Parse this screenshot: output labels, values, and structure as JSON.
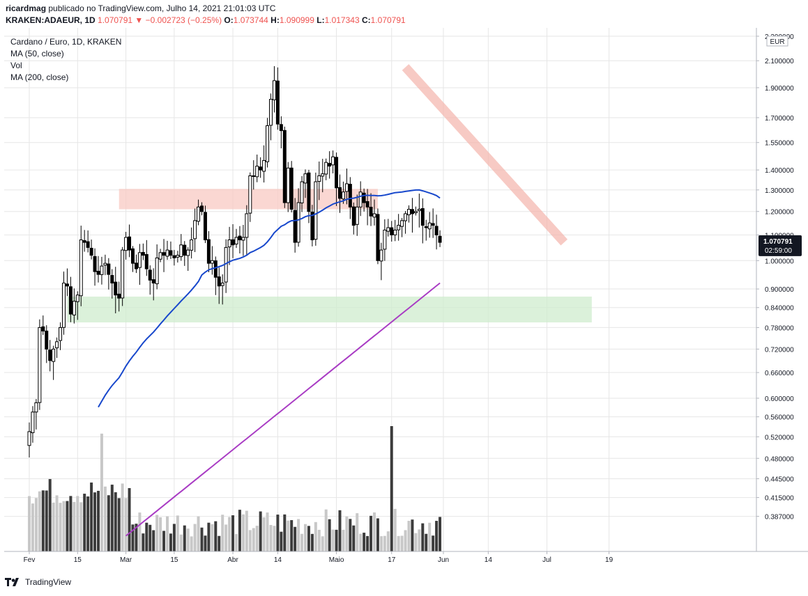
{
  "header": {
    "author": "ricardmag",
    "published_text": "publicado no TradingView.com, Julho 14, 2021 21:01:03 UTC",
    "symbol": "KRAKEN:ADAEUR, 1D",
    "last": "1.070791",
    "change": "−0.002723 (−0.25%)",
    "open_label": "O:",
    "open": "1.073744",
    "high_label": "H:",
    "high": "1.090999",
    "low_label": "L:",
    "low": "1.017343",
    "close_label": "C:",
    "close": "1.070791"
  },
  "legend": {
    "title": "Cardano / Euro, 1D, KRAKEN",
    "ma50": "MA (50, close)",
    "vol": "Vol",
    "ma200": "MA (200, close)"
  },
  "footer": {
    "brand": "TradingView"
  },
  "colors": {
    "up_body": "#ffffff",
    "candle_border": "#000000",
    "ma50": "#1848cc",
    "ma200": "#a93cc4",
    "vol_up": "#c8c8c8",
    "vol_down": "#3c3c3c",
    "resistance_zone": "#f8c9c3",
    "support_zone": "#cfeccd",
    "trendline": "#f4b4ab",
    "last_price_bg": "#131722",
    "grid": "#e6e6e6"
  },
  "chart_data": {
    "type": "candlestick",
    "scale": "log",
    "currency": "EUR",
    "ylim": [
      0.355,
      2.33
    ],
    "x_ticks": [
      {
        "label": "Fev",
        "day": 0
      },
      {
        "label": "15",
        "day": 14
      },
      {
        "label": "Mar",
        "day": 28
      },
      {
        "label": "15",
        "day": 42
      },
      {
        "label": "Abr",
        "day": 59
      },
      {
        "label": "14",
        "day": 72
      },
      {
        "label": "Maio",
        "day": 89
      },
      {
        "label": "17",
        "day": 105
      },
      {
        "label": "Jun",
        "day": 120
      },
      {
        "label": "14",
        "day": 133
      },
      {
        "label": "Jul",
        "day": 150
      },
      {
        "label": "19",
        "day": 168
      }
    ],
    "y_ticks": [
      "2.300000",
      "2.100000",
      "1.900000",
      "1.700000",
      "1.550000",
      "1.400000",
      "1.300000",
      "1.200000",
      "1.100000",
      "1.000000",
      "0.900000",
      "0.840000",
      "0.780000",
      "0.720000",
      "0.660000",
      "0.600000",
      "0.560000",
      "0.520000",
      "0.480000",
      "0.445000",
      "0.415000",
      "0.387000"
    ],
    "last_price": "1.070791",
    "countdown": "02:59:00",
    "resistance_zone": {
      "from": 1.21,
      "to": 1.305,
      "day_start": 26,
      "day_end": 101
    },
    "support_zone": {
      "from": 0.795,
      "to": 0.875,
      "day_start": 11,
      "day_end": 163
    },
    "trendline": {
      "start": {
        "day": 109,
        "price": 2.05
      },
      "end": {
        "day": 155,
        "price": 1.07
      }
    },
    "closes": [
      0.53,
      0.57,
      0.59,
      0.78,
      0.77,
      0.72,
      0.69,
      0.72,
      0.74,
      0.78,
      0.92,
      0.91,
      0.82,
      0.86,
      0.88,
      1.08,
      1.07,
      1.05,
      1.02,
      0.96,
      0.95,
      0.98,
      0.99,
      0.95,
      0.92,
      0.88,
      0.87,
      1.04,
      1.09,
      1.04,
      0.99,
      0.97,
      1.03,
      1.02,
      0.97,
      0.93,
      0.92,
      1.01,
      1.03,
      1.02,
      1.04,
      1.02,
      1.01,
      1.02,
      1.06,
      1.02,
      1.04,
      1.08,
      1.16,
      1.22,
      1.2,
      1.08,
      0.99,
      1.0,
      0.94,
      0.91,
      0.92,
      1.05,
      1.08,
      1.06,
      1.09,
      1.08,
      1.09,
      1.19,
      1.37,
      1.37,
      1.42,
      1.4,
      1.45,
      1.65,
      1.82,
      1.95,
      1.66,
      1.62,
      1.24,
      1.41,
      1.21,
      1.07,
      1.24,
      1.34,
      1.38,
      1.2,
      1.08,
      1.34,
      1.37,
      1.38,
      1.44,
      1.42,
      1.47,
      1.31,
      1.26,
      1.29,
      1.33,
      1.22,
      1.14,
      1.22,
      1.29,
      1.24,
      1.22,
      1.18,
      1.19,
      1.0,
      1.04,
      1.12,
      1.13,
      1.1,
      1.12,
      1.14,
      1.16,
      1.19,
      1.21,
      1.19,
      1.2,
      1.21,
      1.14,
      1.13,
      1.15,
      1.14,
      1.1,
      1.07
    ],
    "volume_peaks": [
      {
        "day": 105,
        "relative": 1.0
      },
      {
        "day": 21,
        "relative": 0.94
      }
    ]
  }
}
